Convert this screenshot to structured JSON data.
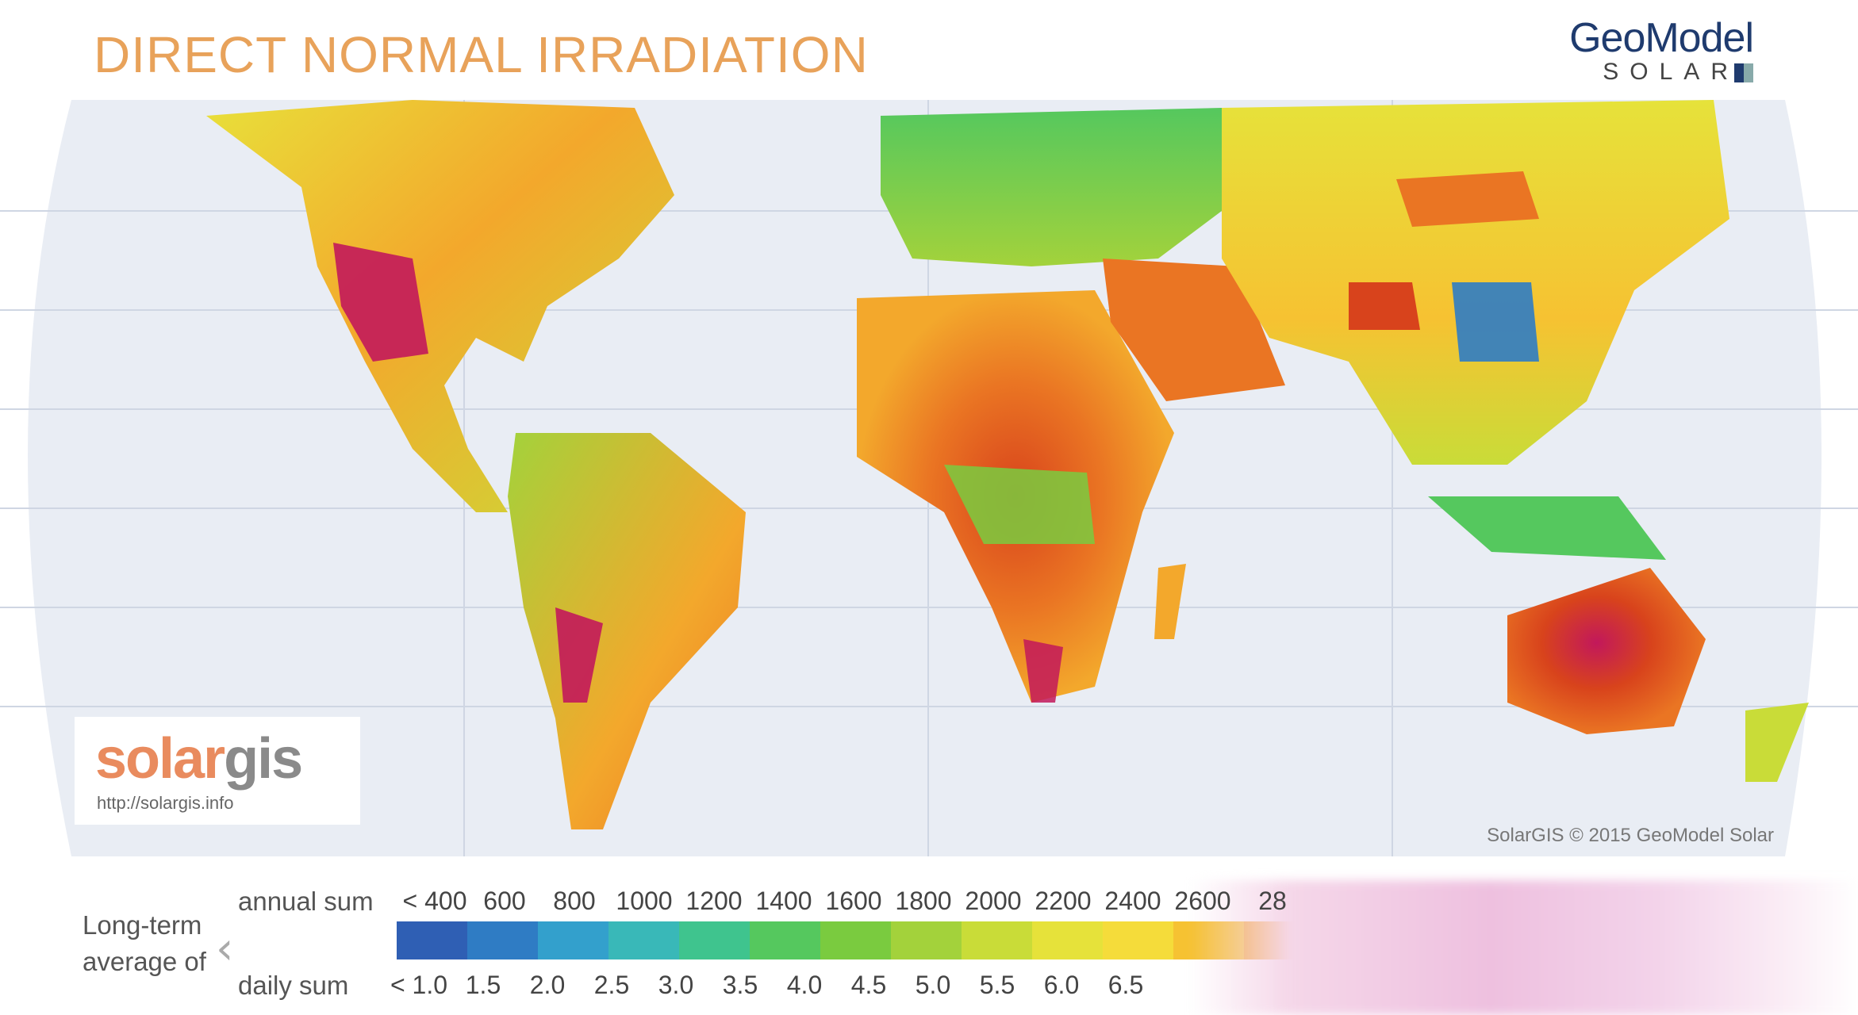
{
  "title": "DIRECT NORMAL IRRADIATION",
  "brand": {
    "name": "GeoModel",
    "sub": "SOLAR"
  },
  "solargis": {
    "logo_left": "solar",
    "logo_right": "gis",
    "url": "http://solargis.info"
  },
  "credit": "SolarGIS © 2015 GeoModel Solar",
  "legend": {
    "label_line1": "Long-term",
    "label_line2": "average of",
    "annual_label": "annual sum",
    "daily_label": "daily sum",
    "annual_ticks": [
      "< 400",
      "600",
      "800",
      "1000",
      "1200",
      "1400",
      "1600",
      "1800",
      "2000",
      "2200",
      "2400",
      "2600",
      "28"
    ],
    "daily_ticks": [
      "< 1.0",
      "1.5",
      "2.0",
      "2.5",
      "3.0",
      "3.5",
      "4.0",
      "4.5",
      "5.0",
      "5.5",
      "6.0",
      "6.5"
    ],
    "colors": [
      "#2f5fb4",
      "#2f7cc4",
      "#33a0cc",
      "#39b8b8",
      "#3fc48e",
      "#55c85e",
      "#7acb3f",
      "#a3d23b",
      "#c9dc38",
      "#e6e23a",
      "#f5dc3a",
      "#f6c232",
      "#f3a82c",
      "#ef8f27",
      "#ea7523",
      "#e25a20",
      "#d8431c",
      "#c82e1c",
      "#b3201e"
    ]
  },
  "map": {
    "description_colors": {
      "ocean": "#e9edf4",
      "land_low": "#5bc85b",
      "land_mid": "#f0d53a",
      "land_high": "#e35a1f",
      "land_peak": "#c2185b"
    }
  }
}
